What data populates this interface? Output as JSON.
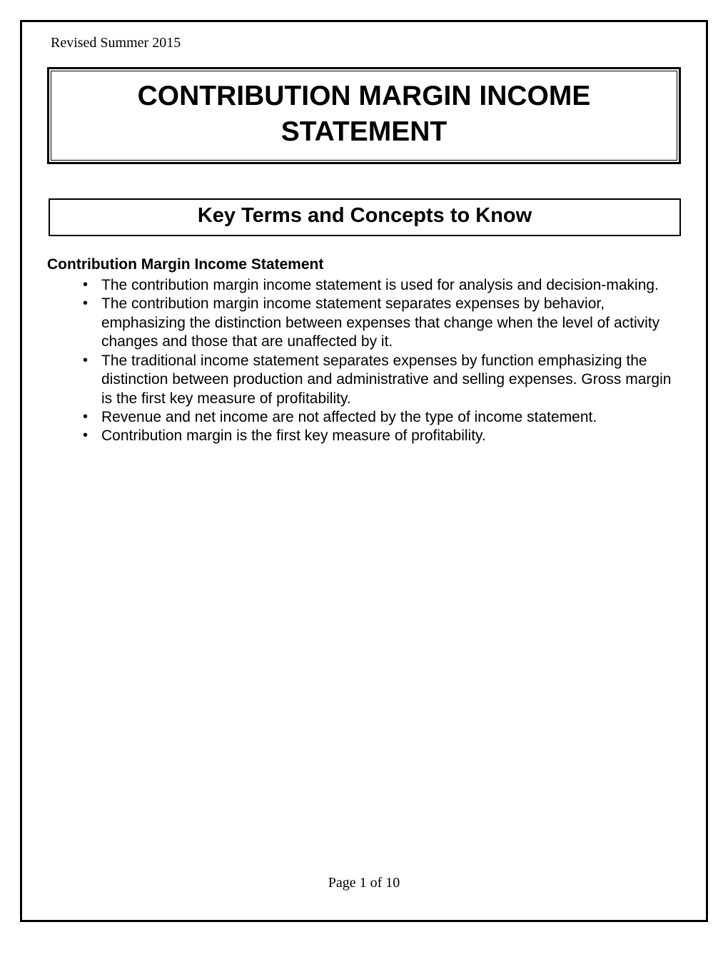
{
  "header": {
    "revision": "Revised Summer 2015"
  },
  "title": "CONTRIBUTION MARGIN INCOME STATEMENT",
  "section": {
    "heading": "Key Terms and Concepts to Know"
  },
  "subsection": {
    "title": "Contribution Margin Income Statement",
    "bullets": [
      "The contribution margin income statement is used for analysis and decision-making.",
      "The contribution margin income statement separates expenses by behavior, emphasizing the distinction between expenses that change when the level of activity changes and those that are unaffected by it.",
      "The traditional income statement separates expenses by function emphasizing the distinction between production and administrative and selling expenses. Gross margin is the first key measure of profitability.",
      "Revenue and net income are not affected by the type of income statement.",
      "Contribution margin is the first key measure of profitability."
    ]
  },
  "footer": {
    "page_label": "Page 1 of 10"
  },
  "colors": {
    "border": "#000000",
    "background": "#ffffff",
    "text": "#000000"
  },
  "typography": {
    "title_fontsize": 39,
    "section_fontsize": 29,
    "body_fontsize": 21,
    "footer_fontsize": 20,
    "revision_fontsize": 20
  }
}
